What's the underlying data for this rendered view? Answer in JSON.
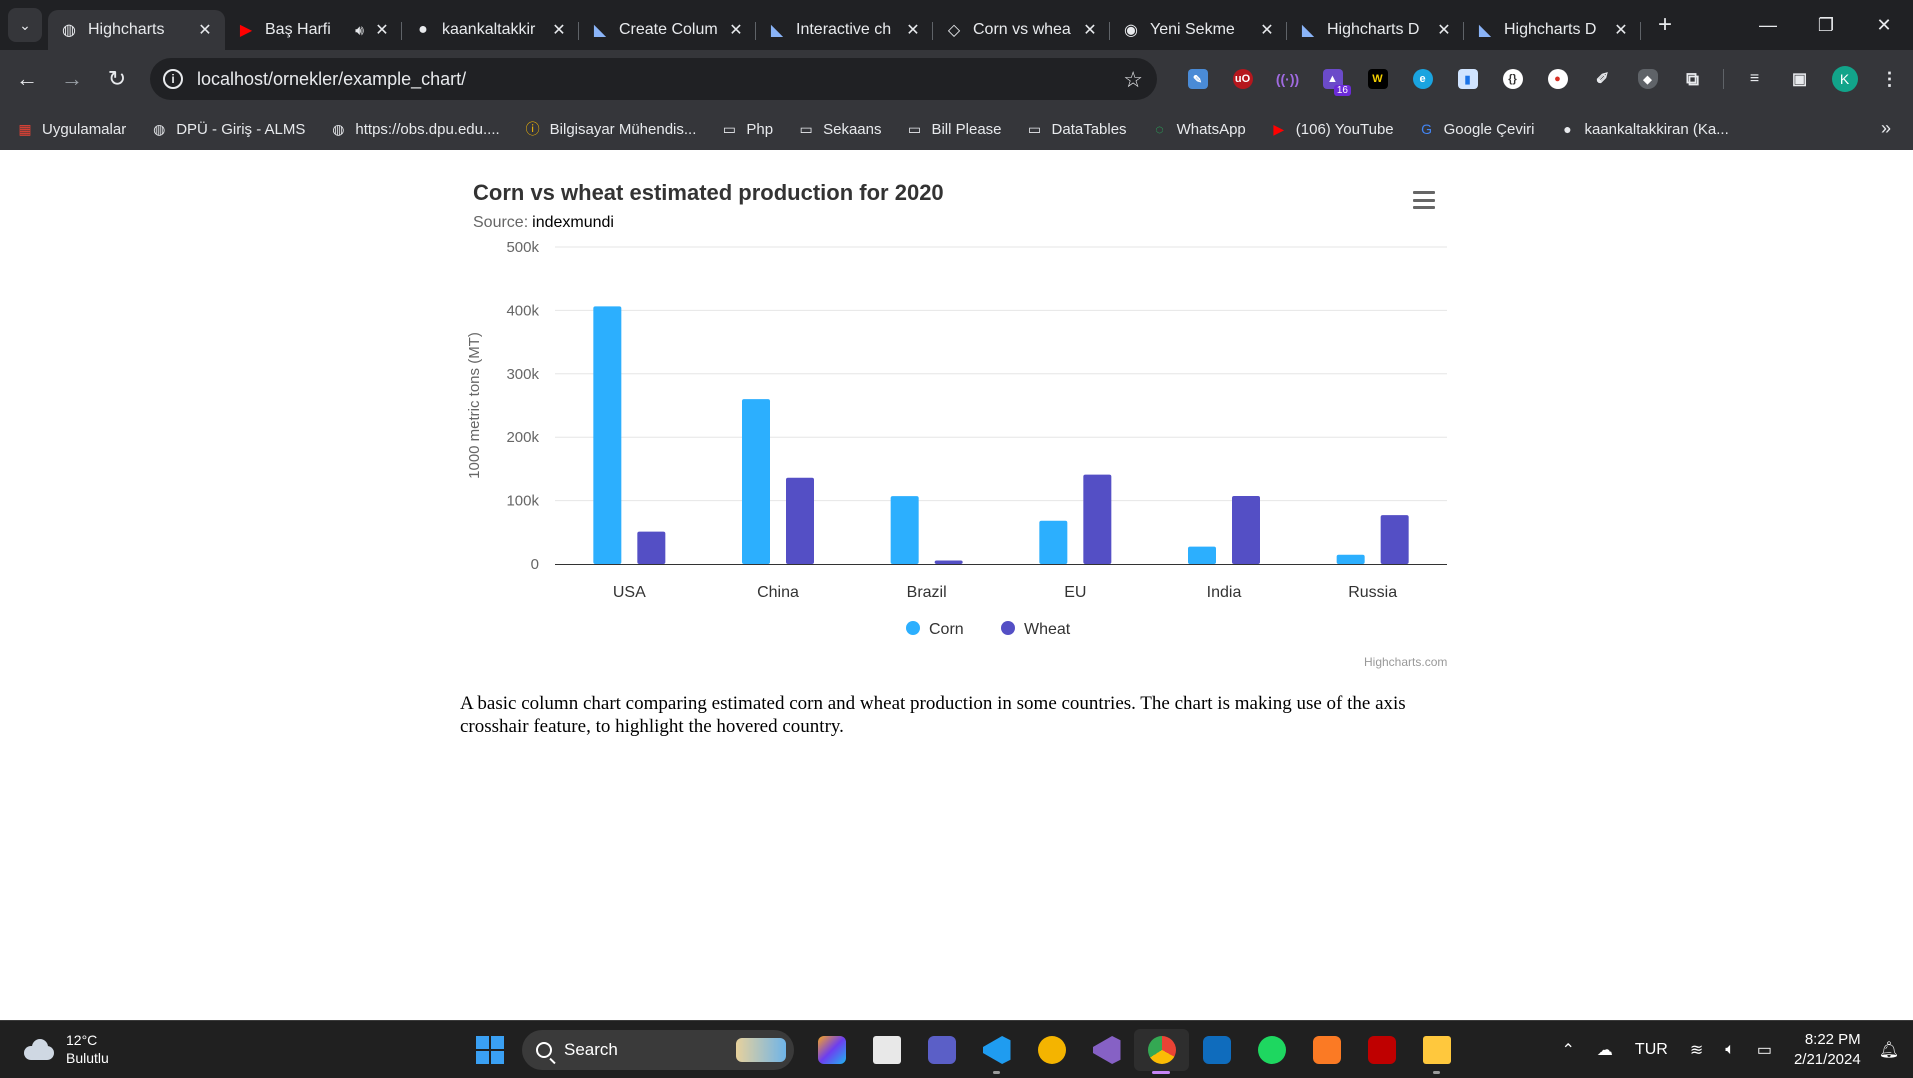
{
  "browser": {
    "tabs": [
      {
        "title": "Highcharts",
        "active": true,
        "icon": "globe-icon"
      },
      {
        "title": "Baş Harfi",
        "audio": true,
        "icon": "youtube-icon"
      },
      {
        "title": "kaankaltakkir",
        "icon": "github-icon"
      },
      {
        "title": "Create Colum",
        "icon": "highcharts-icon"
      },
      {
        "title": "Interactive ch",
        "icon": "highcharts-icon"
      },
      {
        "title": "Corn vs whea",
        "icon": "codepen-icon"
      },
      {
        "title": "Yeni Sekme",
        "icon": "chrome-icon"
      },
      {
        "title": "Highcharts D",
        "icon": "highcharts-icon"
      },
      {
        "title": "Highcharts D",
        "icon": "highcharts-icon"
      }
    ],
    "address": "localhost/ornekler/example_chart/",
    "extension_badge": "16",
    "profile_initial": "K",
    "bookmarks": [
      {
        "label": "Uygulamalar",
        "icon": "apps-grid-icon"
      },
      {
        "label": "DPÜ - Giriş - ALMS",
        "icon": "globe-icon"
      },
      {
        "label": "https://obs.dpu.edu....",
        "icon": "globe-icon"
      },
      {
        "label": "Bilgisayar Mühendis...",
        "icon": "info-icon"
      },
      {
        "label": "Php",
        "icon": "folder-icon"
      },
      {
        "label": "Sekaans",
        "icon": "folder-icon"
      },
      {
        "label": "Bill Please",
        "icon": "folder-icon"
      },
      {
        "label": "DataTables",
        "icon": "folder-icon"
      },
      {
        "label": "WhatsApp",
        "icon": "whatsapp-icon"
      },
      {
        "label": "(106) YouTube",
        "icon": "youtube-icon"
      },
      {
        "label": "Google Çeviri",
        "icon": "translate-icon"
      },
      {
        "label": "kaankaltakkiran (Ka...",
        "icon": "github-icon"
      }
    ]
  },
  "page": {
    "credits": "Highcharts.com",
    "description": "A basic column chart comparing estimated corn and wheat production in some countries. The chart is making use of the axis crosshair feature, to highlight the hovered country.",
    "source_label": "Source:",
    "source_link": "indexmundi"
  },
  "chart_data": {
    "type": "bar",
    "title": "Corn vs wheat estimated production for 2020",
    "subtitle": "Source: indexmundi",
    "xlabel": "",
    "ylabel": "1000 metric tons (MT)",
    "categories": [
      "USA",
      "China",
      "Brazil",
      "EU",
      "India",
      "Russia"
    ],
    "series": [
      {
        "name": "Corn",
        "color": "#2caffe",
        "values": [
          406292,
          260000,
          107000,
          68300,
          27500,
          14500
        ]
      },
      {
        "name": "Wheat",
        "color": "#544fc5",
        "values": [
          51086,
          136000,
          5500,
          141000,
          107180,
          77000
        ]
      }
    ],
    "ylim": [
      0,
      500000
    ],
    "yticks": [
      "0",
      "100k",
      "200k",
      "300k",
      "400k",
      "500k"
    ],
    "grid": true,
    "legend_position": "bottom-center"
  },
  "taskbar": {
    "weather_temp": "12°C",
    "weather_desc": "Bulutlu",
    "search_placeholder": "Search",
    "language": "TUR",
    "time": "8:22 PM",
    "date": "2/21/2024"
  }
}
